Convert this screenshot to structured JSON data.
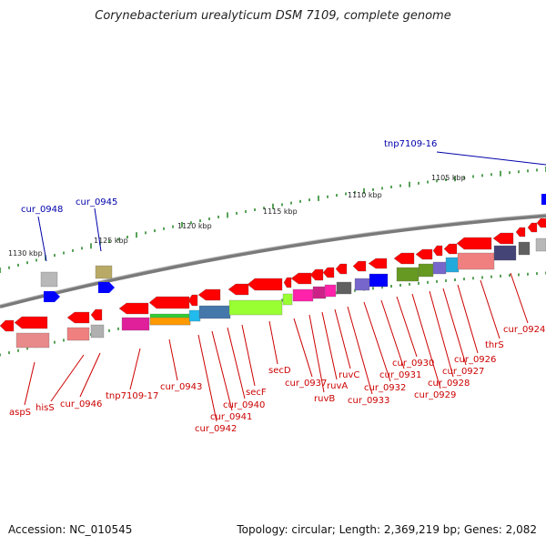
{
  "title": "Corynebacterium urealyticum DSM 7109, complete genome",
  "footer": {
    "accession": "Accession: NC_010545",
    "summary": "Topology: circular; Length: 2,369,219 bp; Genes: 2,082"
  },
  "colors": {
    "backbone": "#808080",
    "forward_gene": "#ff0000",
    "reverse_gene": "#ff0000",
    "mobile_element": "#0000ff",
    "tick_marks": "#2e8b2e",
    "label_red": "#cc0000",
    "label_blue": "#0000aa"
  },
  "scale_ticks": [
    "1130 kbp",
    "1125 kbp",
    "1120 kbp",
    "1115 kbp",
    "1110 kbp",
    "1105 kbp"
  ],
  "blue_labels": [
    "tnp7109-16",
    "cur_0948",
    "cur_0945"
  ],
  "red_labels": [
    "aspS",
    "hisS",
    "cur_0946",
    "tnp7109-17",
    "cur_0943",
    "cur_0942",
    "cur_0941",
    "cur_0940",
    "secF",
    "secD",
    "cur_0937",
    "ruvB",
    "ruvA",
    "ruvC",
    "cur_0933",
    "cur_0932",
    "cur_0931",
    "cur_0930",
    "cur_0929",
    "cur_0928",
    "cur_0927",
    "cur_0926",
    "thrS",
    "cur_0924"
  ]
}
